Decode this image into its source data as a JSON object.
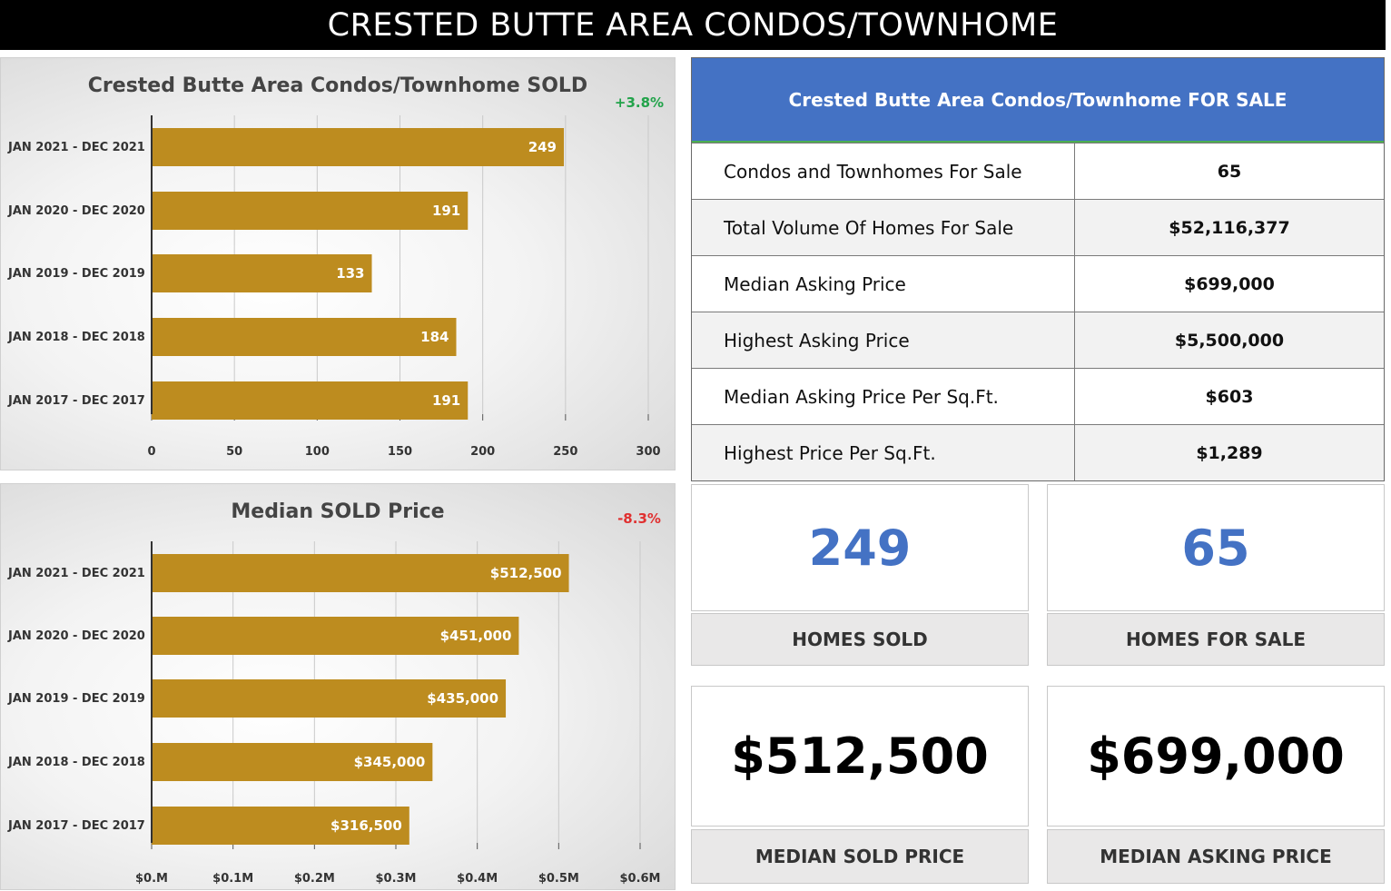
{
  "banner": {
    "title": "CRESTED BUTTE AREA CONDOS/TOWNHOME"
  },
  "chart_data": [
    {
      "type": "bar",
      "orientation": "horizontal",
      "title": "Crested Butte Area Condos/Townhome SOLD",
      "change": "+3.8%",
      "change_color": "#22a34a",
      "categories": [
        "JAN 2021 - DEC 2021",
        "JAN 2020 - DEC 2020",
        "JAN 2019 - DEC 2019",
        "JAN 2018 - DEC 2018",
        "JAN 2017 - DEC 2017"
      ],
      "values": [
        249,
        191,
        133,
        184,
        191
      ],
      "value_labels": [
        "249",
        "191",
        "133",
        "184",
        "191"
      ],
      "ticks": [
        0,
        50,
        100,
        150,
        200,
        250,
        300
      ],
      "tick_labels": [
        "0",
        "50",
        "100",
        "150",
        "200",
        "250",
        "300"
      ],
      "xlim": [
        0,
        300
      ],
      "bar_color": "#bd8c1f",
      "grid": true
    },
    {
      "type": "bar",
      "orientation": "horizontal",
      "title": "Median SOLD Price",
      "change": "-8.3%",
      "change_color": "#e03030",
      "categories": [
        "JAN 2021 - DEC 2021",
        "JAN 2020 - DEC 2020",
        "JAN 2019 - DEC 2019",
        "JAN 2018 - DEC 2018",
        "JAN 2017 - DEC 2017"
      ],
      "values": [
        512500,
        451000,
        435000,
        345000,
        316500
      ],
      "value_labels": [
        "$512,500",
        "$451,000",
        "$435,000",
        "$345,000",
        "$316,500"
      ],
      "ticks": [
        0,
        100000,
        200000,
        300000,
        400000,
        500000,
        600000
      ],
      "tick_labels": [
        "$0.M",
        "$0.1M",
        "$0.2M",
        "$0.3M",
        "$0.4M",
        "$0.5M",
        "$0.6M"
      ],
      "xlim": [
        0,
        600000
      ],
      "bar_color": "#bd8c1f",
      "grid": true
    }
  ],
  "for_sale": {
    "title": "Crested Butte Area Condos/Townhome FOR SALE",
    "rows": [
      {
        "label": "Condos and Townhomes For Sale",
        "value": "65"
      },
      {
        "label": "Total Volume Of Homes For Sale",
        "value": "$52,116,377"
      },
      {
        "label": "Median Asking Price",
        "value": "$699,000"
      },
      {
        "label": "Highest Asking Price",
        "value": "$5,500,000"
      },
      {
        "label": "Median Asking Price Per Sq.Ft.",
        "value": "$603"
      },
      {
        "label": "Highest Price Per Sq.Ft.",
        "value": "$1,289"
      }
    ]
  },
  "kpis": {
    "homes_sold": {
      "value": "249",
      "label": "HOMES SOLD"
    },
    "homes_for_sale": {
      "value": "65",
      "label": "HOMES FOR SALE"
    },
    "median_sold_price": {
      "value": "$512,500",
      "label": "MEDIAN SOLD PRICE"
    },
    "median_asking_price": {
      "value": "$699,000",
      "label": "MEDIAN ASKING PRICE"
    }
  }
}
